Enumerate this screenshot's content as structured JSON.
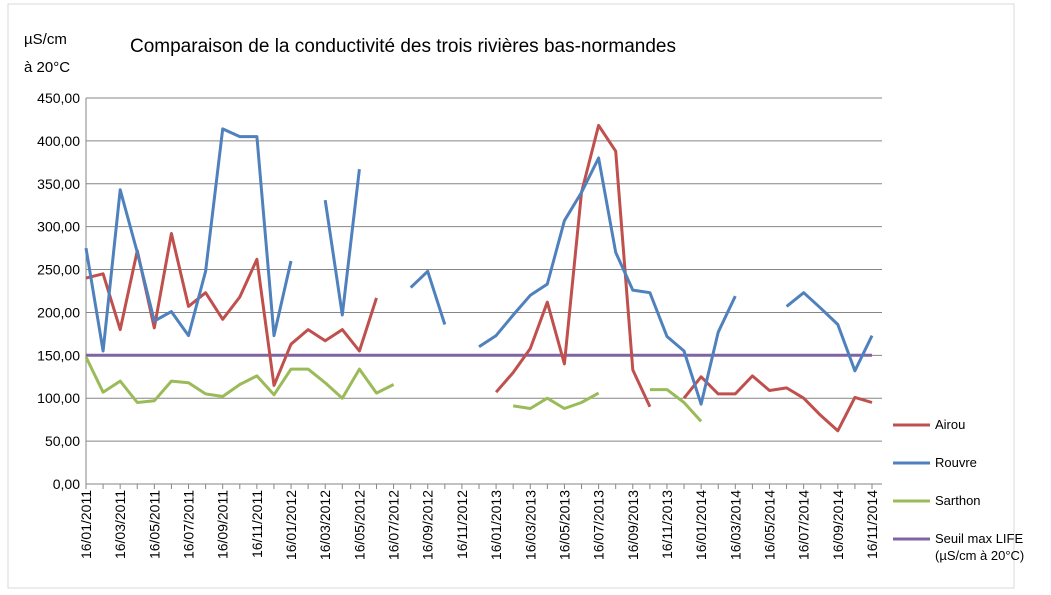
{
  "chart_data": {
    "type": "line",
    "title": "Comparaison de la conductivité des trois rivières bas-normandes",
    "ylabel_lines": [
      "µS/cm",
      "à 20°C"
    ],
    "categories": [
      "16/01/2011",
      null,
      "16/03/2011",
      null,
      "16/05/2011",
      null,
      "16/07/2011",
      null,
      "16/09/2011",
      null,
      "16/11/2011",
      null,
      "16/01/2012",
      null,
      "16/03/2012",
      null,
      "16/05/2012",
      null,
      "16/07/2012",
      null,
      "16/09/2012",
      null,
      "16/11/2012",
      null,
      "16/01/2013",
      null,
      "16/03/2013",
      null,
      "16/05/2013",
      null,
      "16/07/2013",
      null,
      "16/09/2013",
      null,
      "16/11/2013",
      null,
      "16/01/2014",
      null,
      "16/03/2014",
      null,
      "16/05/2014",
      null,
      "16/07/2014",
      null,
      "16/09/2014",
      null,
      "16/11/2014"
    ],
    "series": [
      {
        "name": "Airou",
        "color": "#c0504d",
        "values": [
          240,
          245,
          180,
          272,
          182,
          292,
          207,
          223,
          192,
          218,
          262,
          115,
          163,
          180,
          167,
          180,
          155,
          217,
          null,
          null,
          null,
          null,
          null,
          null,
          107,
          130,
          158,
          212,
          140,
          340,
          418,
          388,
          133,
          90,
          null,
          100,
          125,
          105,
          105,
          126,
          109,
          112,
          100,
          80,
          62,
          101,
          95
        ]
      },
      {
        "name": "Rouvre",
        "color": "#4f81bd",
        "values": [
          275,
          155,
          343,
          270,
          190,
          201,
          173,
          248,
          414,
          405,
          405,
          173,
          260,
          null,
          331,
          197,
          367,
          null,
          null,
          229,
          248,
          186,
          null,
          160,
          173,
          197,
          220,
          233,
          307,
          340,
          380,
          270,
          226,
          223,
          172,
          155,
          93,
          177,
          219,
          null,
          null,
          207,
          223,
          205,
          186,
          132,
          173
        ]
      },
      {
        "name": "Sarthon",
        "color": "#9bbb59",
        "values": [
          148,
          107,
          120,
          95,
          97,
          120,
          118,
          105,
          102,
          116,
          126,
          104,
          134,
          134,
          118,
          100,
          134,
          106,
          116,
          null,
          null,
          null,
          null,
          null,
          null,
          91,
          88,
          100,
          88,
          95,
          106,
          null,
          null,
          110,
          110,
          95,
          73,
          null,
          null,
          null,
          null,
          null,
          null,
          null,
          null,
          null,
          null
        ]
      },
      {
        "name": "Seuil max LIFE (µS/cm à 20°C)",
        "color": "#8064a2",
        "values": [
          150,
          150,
          150,
          150,
          150,
          150,
          150,
          150,
          150,
          150,
          150,
          150,
          150,
          150,
          150,
          150,
          150,
          150,
          150,
          150,
          150,
          150,
          150,
          150,
          150,
          150,
          150,
          150,
          150,
          150,
          150,
          150,
          150,
          150,
          150,
          150,
          150,
          150,
          150,
          150,
          150,
          150,
          150,
          150,
          150,
          150,
          150
        ]
      }
    ],
    "ylim": [
      0,
      450
    ],
    "yticks": [
      {
        "value": 0,
        "label": "0,00"
      },
      {
        "value": 50,
        "label": "50,00"
      },
      {
        "value": 100,
        "label": "100,00"
      },
      {
        "value": 150,
        "label": "150,00"
      },
      {
        "value": 200,
        "label": "200,00"
      },
      {
        "value": 250,
        "label": "250,00"
      },
      {
        "value": 300,
        "label": "300,00"
      },
      {
        "value": 350,
        "label": "350,00"
      },
      {
        "value": 400,
        "label": "400,00"
      },
      {
        "value": 450,
        "label": "450,00"
      }
    ],
    "grid": true,
    "legend": "right"
  }
}
